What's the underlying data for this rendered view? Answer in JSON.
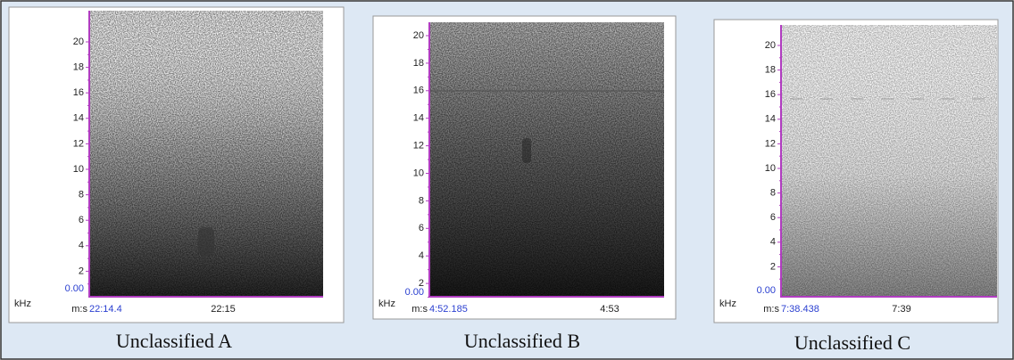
{
  "panels": [
    {
      "y_ticks": [
        "20",
        "18",
        "16",
        "14",
        "12",
        "10",
        "8",
        "6",
        "4",
        "2"
      ],
      "y_origin": "0.00",
      "y_unit": "kHz",
      "x_prefix": "m:s",
      "x_start": "22:14.4",
      "x_tick": "22:15",
      "caption": "Unclassified A"
    },
    {
      "y_ticks": [
        "20",
        "18",
        "16",
        "14",
        "12",
        "10",
        "8",
        "6",
        "4",
        "2"
      ],
      "y_origin": "0.00",
      "y_unit": "kHz",
      "x_prefix": "m:s",
      "x_start": "4:52.185",
      "x_tick": "4:53",
      "caption": "Unclassified B"
    },
    {
      "y_ticks": [
        "20",
        "18",
        "16",
        "14",
        "12",
        "10",
        "8",
        "6",
        "4",
        "2"
      ],
      "y_origin": "0.00",
      "y_unit": "kHz",
      "x_prefix": "m:s",
      "x_start": "7:38.438",
      "x_tick": "7:39",
      "caption": "Unclassified C"
    }
  ]
}
